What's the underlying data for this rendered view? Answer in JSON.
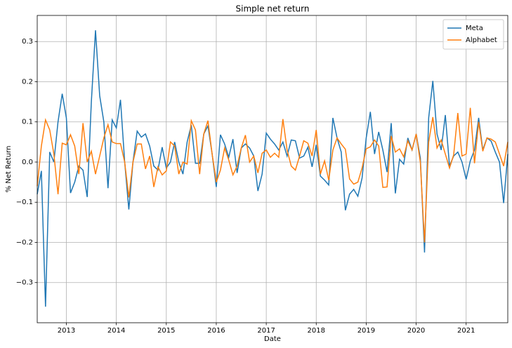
{
  "chart_data": {
    "type": "line",
    "title": "Simple net return",
    "x_label": "Date",
    "y_label": "% Net Return",
    "x": [
      2012.417,
      2012.5,
      2012.583,
      2012.667,
      2012.75,
      2012.833,
      2012.917,
      2013,
      2013.083,
      2013.167,
      2013.25,
      2013.333,
      2013.417,
      2013.5,
      2013.583,
      2013.667,
      2013.75,
      2013.833,
      2013.917,
      2014,
      2014.083,
      2014.167,
      2014.25,
      2014.333,
      2014.417,
      2014.5,
      2014.583,
      2014.667,
      2014.75,
      2014.833,
      2014.917,
      2015,
      2015.083,
      2015.167,
      2015.25,
      2015.333,
      2015.417,
      2015.5,
      2015.583,
      2015.667,
      2015.75,
      2015.833,
      2015.917,
      2016,
      2016.083,
      2016.167,
      2016.25,
      2016.333,
      2016.417,
      2016.5,
      2016.583,
      2016.667,
      2016.75,
      2016.833,
      2016.917,
      2017,
      2017.083,
      2017.167,
      2017.25,
      2017.333,
      2017.417,
      2017.5,
      2017.583,
      2017.667,
      2017.75,
      2017.833,
      2017.917,
      2018,
      2018.083,
      2018.167,
      2018.25,
      2018.333,
      2018.417,
      2018.5,
      2018.583,
      2018.667,
      2018.75,
      2018.833,
      2018.917,
      2019,
      2019.083,
      2019.167,
      2019.25,
      2019.333,
      2019.417,
      2019.5,
      2019.583,
      2019.667,
      2019.75,
      2019.833,
      2019.917,
      2020,
      2020.083,
      2020.167,
      2020.25,
      2020.333,
      2020.417,
      2020.5,
      2020.583,
      2020.667,
      2020.75,
      2020.833,
      2020.917,
      2021,
      2021.083,
      2021.167,
      2021.25,
      2021.333,
      2021.417,
      2021.5,
      2021.583,
      2021.667,
      2021.75,
      2021.833
    ],
    "series": [
      {
        "name": "Meta",
        "color": "#1f77b4",
        "values": [
          -0.08,
          -0.022,
          -0.36,
          0.025,
          0.0,
          0.1,
          0.17,
          0.11,
          -0.077,
          -0.05,
          -0.01,
          -0.02,
          -0.087,
          0.15,
          0.328,
          0.165,
          0.1,
          -0.065,
          0.105,
          0.085,
          0.155,
          0.0,
          -0.118,
          0.0,
          0.077,
          0.062,
          0.07,
          0.04,
          -0.01,
          -0.02,
          0.037,
          -0.015,
          0.0,
          0.05,
          0.0,
          -0.03,
          0.05,
          0.092,
          -0.003,
          -0.003,
          0.07,
          0.09,
          0.02,
          -0.062,
          0.068,
          0.045,
          0.012,
          0.057,
          -0.027,
          0.035,
          0.045,
          0.035,
          0.015,
          -0.072,
          -0.03,
          0.072,
          0.057,
          0.045,
          0.03,
          0.05,
          0.015,
          0.055,
          0.053,
          0.01,
          0.015,
          0.037,
          -0.012,
          0.043,
          -0.035,
          -0.045,
          -0.057,
          0.11,
          0.06,
          0.025,
          -0.12,
          -0.08,
          -0.068,
          -0.085,
          -0.04,
          0.06,
          0.125,
          0.02,
          0.075,
          0.03,
          -0.025,
          0.097,
          -0.078,
          0.007,
          -0.005,
          0.06,
          0.03,
          0.07,
          0.01,
          -0.225,
          0.11,
          0.202,
          0.07,
          0.03,
          0.117,
          -0.01,
          0.015,
          0.025,
          0.0,
          -0.043,
          0.003,
          0.03,
          0.11,
          0.03,
          0.06,
          0.052,
          0.025,
          0.0,
          -0.102,
          0.02
        ]
      },
      {
        "name": "Alphabet",
        "color": "#ff7f0e",
        "values": [
          -0.06,
          0.04,
          0.105,
          0.08,
          0.02,
          -0.08,
          0.047,
          0.043,
          0.068,
          0.04,
          -0.03,
          0.097,
          0.0,
          0.027,
          -0.03,
          0.015,
          0.06,
          0.093,
          0.05,
          0.046,
          0.046,
          0.0,
          -0.088,
          0.0,
          0.045,
          0.045,
          -0.017,
          0.015,
          -0.062,
          -0.012,
          -0.032,
          -0.022,
          0.05,
          0.04,
          -0.03,
          0.0,
          -0.005,
          0.103,
          0.08,
          -0.03,
          0.07,
          0.103,
          0.02,
          -0.05,
          -0.02,
          0.035,
          0.005,
          -0.032,
          -0.01,
          0.035,
          0.067,
          0.0,
          0.015,
          -0.027,
          0.022,
          0.03,
          0.012,
          0.022,
          0.012,
          0.107,
          0.03,
          -0.01,
          -0.02,
          0.015,
          0.053,
          0.047,
          0.015,
          0.08,
          -0.03,
          0.003,
          -0.045,
          0.03,
          0.06,
          0.045,
          0.032,
          -0.042,
          -0.055,
          -0.05,
          -0.015,
          0.033,
          0.038,
          0.055,
          0.04,
          -0.063,
          -0.062,
          0.065,
          0.025,
          0.033,
          0.013,
          0.053,
          0.03,
          0.07,
          0.0,
          -0.2,
          0.05,
          0.112,
          0.035,
          0.055,
          0.02,
          -0.015,
          0.018,
          0.122,
          0.015,
          0.02,
          0.135,
          -0.003,
          0.1,
          0.027,
          0.06,
          0.057,
          0.05,
          0.02,
          -0.01,
          0.05
        ]
      }
    ],
    "xlim": [
      2012.417,
      2021.833
    ],
    "xticks": [
      2013,
      2014,
      2015,
      2016,
      2017,
      2018,
      2019,
      2020,
      2021
    ],
    "ylim": [
      -0.4,
      0.365
    ],
    "yticks": [
      {
        "value": -0.3,
        "label": "−0.3"
      },
      {
        "value": -0.2,
        "label": "−0.2"
      },
      {
        "value": -0.1,
        "label": "−0.1"
      },
      {
        "value": 0,
        "label": "0.0"
      },
      0.1,
      0.2,
      0.3
    ],
    "grid": true,
    "legend": "upper right"
  }
}
